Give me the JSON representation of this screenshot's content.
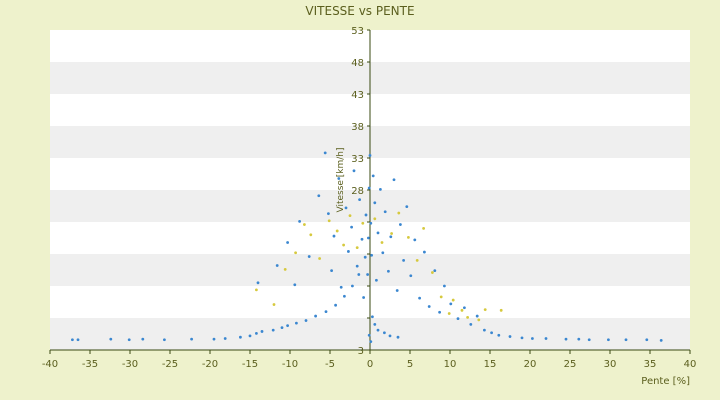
{
  "chart_data": {
    "type": "scatter",
    "title": "VITESSE vs PENTE",
    "xlabel": "Pente [%]",
    "ylabel": "Vitesse [km/h]",
    "xlim": [
      -40,
      40
    ],
    "ylim": [
      3,
      53
    ],
    "xticks": [
      -40,
      -35,
      -30,
      -25,
      -20,
      -15,
      -10,
      -5,
      0,
      5,
      10,
      15,
      20,
      25,
      30,
      35,
      40
    ],
    "yticks": [
      3,
      8,
      13,
      18,
      23,
      28,
      33,
      38,
      43,
      48,
      53
    ],
    "ytick_labels": [
      "3",
      "",
      "",
      "",
      "",
      "28",
      "33",
      "38",
      "43",
      "48",
      "53"
    ],
    "grid": "horizontal alternating bands",
    "legend": "none",
    "colors": {
      "background": "#EEF2CC",
      "plot_band_light": "#FFFFFF",
      "plot_band_dark": "#EFEFEF",
      "axis": "#3a4a12",
      "text": "#5b5f1e",
      "series_blue": "#3B87D0",
      "series_yellow": "#D6C93E"
    },
    "series": [
      {
        "color": "#3B87D0",
        "points": [
          [
            -37.2,
            4.6
          ],
          [
            -36.5,
            4.6
          ],
          [
            -32.4,
            4.7
          ],
          [
            -30.1,
            4.6
          ],
          [
            -28.4,
            4.7
          ],
          [
            -25.7,
            4.6
          ],
          [
            -22.3,
            4.7
          ],
          [
            -19.5,
            4.7
          ],
          [
            -18.1,
            4.8
          ],
          [
            -16.2,
            5.0
          ],
          [
            -15.0,
            5.2
          ],
          [
            -14.2,
            5.6
          ],
          [
            -13.5,
            5.9
          ],
          [
            -12.1,
            6.1
          ],
          [
            -11.0,
            6.5
          ],
          [
            -10.3,
            6.8
          ],
          [
            -9.2,
            7.2
          ],
          [
            -8.0,
            7.6
          ],
          [
            -6.8,
            8.3
          ],
          [
            -5.5,
            9.0
          ],
          [
            -4.3,
            10.0
          ],
          [
            -3.2,
            11.4
          ],
          [
            -2.2,
            13.0
          ],
          [
            -1.4,
            14.8
          ],
          [
            -0.6,
            17.5
          ],
          [
            -0.2,
            20.5
          ],
          [
            -14.0,
            13.5
          ],
          [
            -11.6,
            16.2
          ],
          [
            -10.3,
            19.8
          ],
          [
            -9.4,
            13.2
          ],
          [
            -8.8,
            23.1
          ],
          [
            -7.6,
            17.6
          ],
          [
            -6.4,
            27.1
          ],
          [
            -5.6,
            33.8
          ],
          [
            -5.2,
            24.3
          ],
          [
            -4.8,
            15.4
          ],
          [
            -4.5,
            20.8
          ],
          [
            -3.9,
            29.8
          ],
          [
            -3.6,
            12.8
          ],
          [
            -3.0,
            25.2
          ],
          [
            -2.7,
            18.4
          ],
          [
            -2.3,
            22.2
          ],
          [
            -2.0,
            31.0
          ],
          [
            -1.6,
            16.1
          ],
          [
            -1.3,
            26.5
          ],
          [
            -1.0,
            20.3
          ],
          [
            -0.8,
            11.2
          ],
          [
            -0.5,
            24.1
          ],
          [
            -0.3,
            14.8
          ],
          [
            -0.1,
            28.3
          ],
          [
            0.0,
            33.4
          ],
          [
            0.1,
            22.8
          ],
          [
            0.2,
            17.8
          ],
          [
            0.4,
            30.2
          ],
          [
            0.6,
            26.0
          ],
          [
            0.8,
            13.9
          ],
          [
            1.0,
            21.3
          ],
          [
            1.3,
            28.1
          ],
          [
            1.6,
            18.2
          ],
          [
            1.9,
            24.6
          ],
          [
            2.3,
            15.3
          ],
          [
            2.6,
            20.7
          ],
          [
            3.0,
            29.6
          ],
          [
            3.4,
            12.3
          ],
          [
            3.8,
            22.6
          ],
          [
            4.2,
            17.0
          ],
          [
            4.6,
            25.4
          ],
          [
            5.1,
            14.6
          ],
          [
            5.6,
            20.2
          ],
          [
            6.2,
            11.1
          ],
          [
            6.8,
            18.3
          ],
          [
            7.4,
            9.8
          ],
          [
            8.1,
            15.4
          ],
          [
            8.7,
            8.9
          ],
          [
            9.3,
            13.0
          ],
          [
            10.1,
            10.2
          ],
          [
            11.0,
            7.9
          ],
          [
            11.8,
            9.6
          ],
          [
            12.6,
            7.0
          ],
          [
            13.4,
            8.3
          ],
          [
            14.3,
            6.1
          ],
          [
            15.2,
            5.7
          ],
          [
            16.1,
            5.3
          ],
          [
            17.5,
            5.1
          ],
          [
            19.0,
            4.9
          ],
          [
            20.3,
            4.8
          ],
          [
            22.0,
            4.8
          ],
          [
            24.5,
            4.7
          ],
          [
            26.1,
            4.7
          ],
          [
            27.4,
            4.6
          ],
          [
            29.8,
            4.6
          ],
          [
            32.0,
            4.6
          ],
          [
            34.6,
            4.6
          ],
          [
            36.4,
            4.5
          ],
          [
            0.3,
            8.2
          ],
          [
            0.6,
            7.0
          ],
          [
            1.0,
            6.1
          ],
          [
            1.8,
            5.7
          ],
          [
            2.5,
            5.2
          ],
          [
            3.5,
            5.0
          ],
          [
            0.1,
            4.3
          ],
          [
            -0.1,
            5.3
          ]
        ]
      },
      {
        "color": "#D6C93E",
        "points": [
          [
            -14.2,
            12.4
          ],
          [
            -12.0,
            10.1
          ],
          [
            -10.6,
            15.6
          ],
          [
            -9.3,
            18.2
          ],
          [
            -8.2,
            22.6
          ],
          [
            -7.4,
            21.0
          ],
          [
            -6.3,
            17.3
          ],
          [
            -5.1,
            23.2
          ],
          [
            -4.1,
            21.6
          ],
          [
            -3.3,
            19.4
          ],
          [
            -2.5,
            24.0
          ],
          [
            -1.6,
            19.0
          ],
          [
            -0.9,
            22.8
          ],
          [
            0.6,
            23.5
          ],
          [
            1.5,
            19.8
          ],
          [
            2.7,
            21.2
          ],
          [
            3.6,
            24.4
          ],
          [
            4.8,
            20.6
          ],
          [
            5.9,
            17.0
          ],
          [
            6.7,
            22.0
          ],
          [
            7.8,
            15.1
          ],
          [
            8.9,
            11.3
          ],
          [
            9.9,
            8.7
          ],
          [
            10.4,
            10.8
          ],
          [
            11.5,
            9.2
          ],
          [
            12.2,
            8.1
          ],
          [
            13.6,
            7.7
          ],
          [
            14.4,
            9.3
          ],
          [
            16.4,
            9.2
          ]
        ]
      }
    ]
  }
}
